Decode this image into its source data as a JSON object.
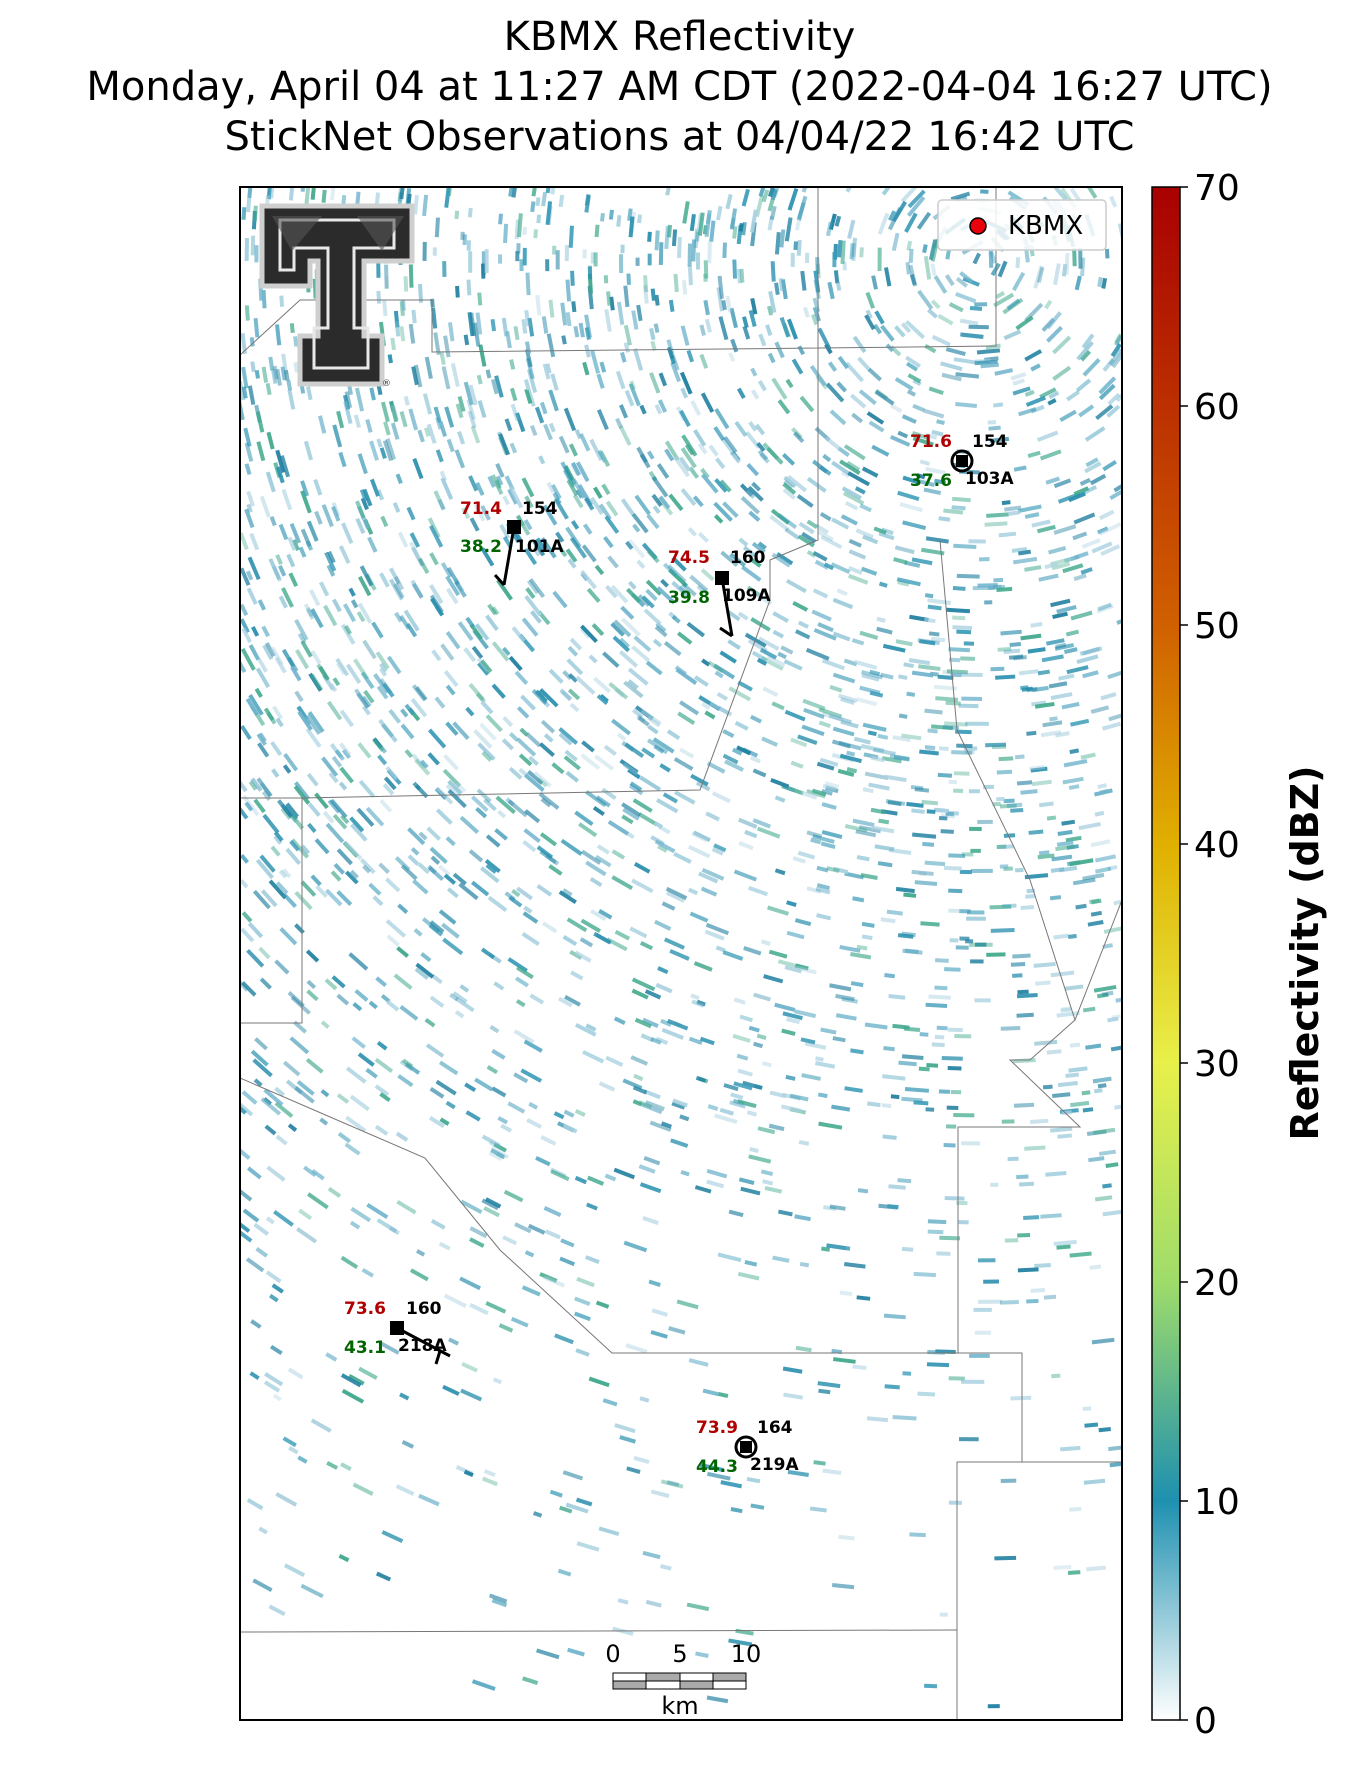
{
  "title": {
    "line1": "KBMX Reflectivity",
    "line2": "Monday, April 04 at 11:27 AM CDT (2022-04-04 16:27 UTC)",
    "line3": "StickNet Observations at 04/04/22 16:42 UTC"
  },
  "legend": {
    "label": "KBMX",
    "marker_color": "#e8000b"
  },
  "colorbar": {
    "label": "Reflectivity (dBZ)",
    "ticks": [
      "0",
      "10",
      "20",
      "30",
      "40",
      "50",
      "60",
      "70"
    ],
    "range": [
      0,
      70
    ],
    "colors": [
      "#ffffff",
      "#1e90b0",
      "#3aa88e",
      "#9fdc6a",
      "#e8f04a",
      "#e0b000",
      "#d06000",
      "#b00000"
    ]
  },
  "logo": {
    "name": "Texas Tech Double T"
  },
  "scale_bar": {
    "ticks": [
      "0",
      "5",
      "10"
    ],
    "unit": "km"
  },
  "stations": [
    {
      "id": "101A",
      "temp": "71.4",
      "dew": "38.2",
      "dir": "154"
    },
    {
      "id": "109A",
      "temp": "74.5",
      "dew": "39.8",
      "dir": "160"
    },
    {
      "id": "103A",
      "temp": "71.6",
      "dew": "37.6",
      "dir": "154"
    },
    {
      "id": "218A",
      "temp": "73.6",
      "dew": "43.1",
      "dir": "160"
    },
    {
      "id": "219A",
      "temp": "73.9",
      "dew": "44.3",
      "dir": "164"
    }
  ],
  "colors": {
    "temp": "#b00000",
    "dew": "#006400",
    "station_text": "#000000",
    "radar_main": "#2a8fae"
  }
}
